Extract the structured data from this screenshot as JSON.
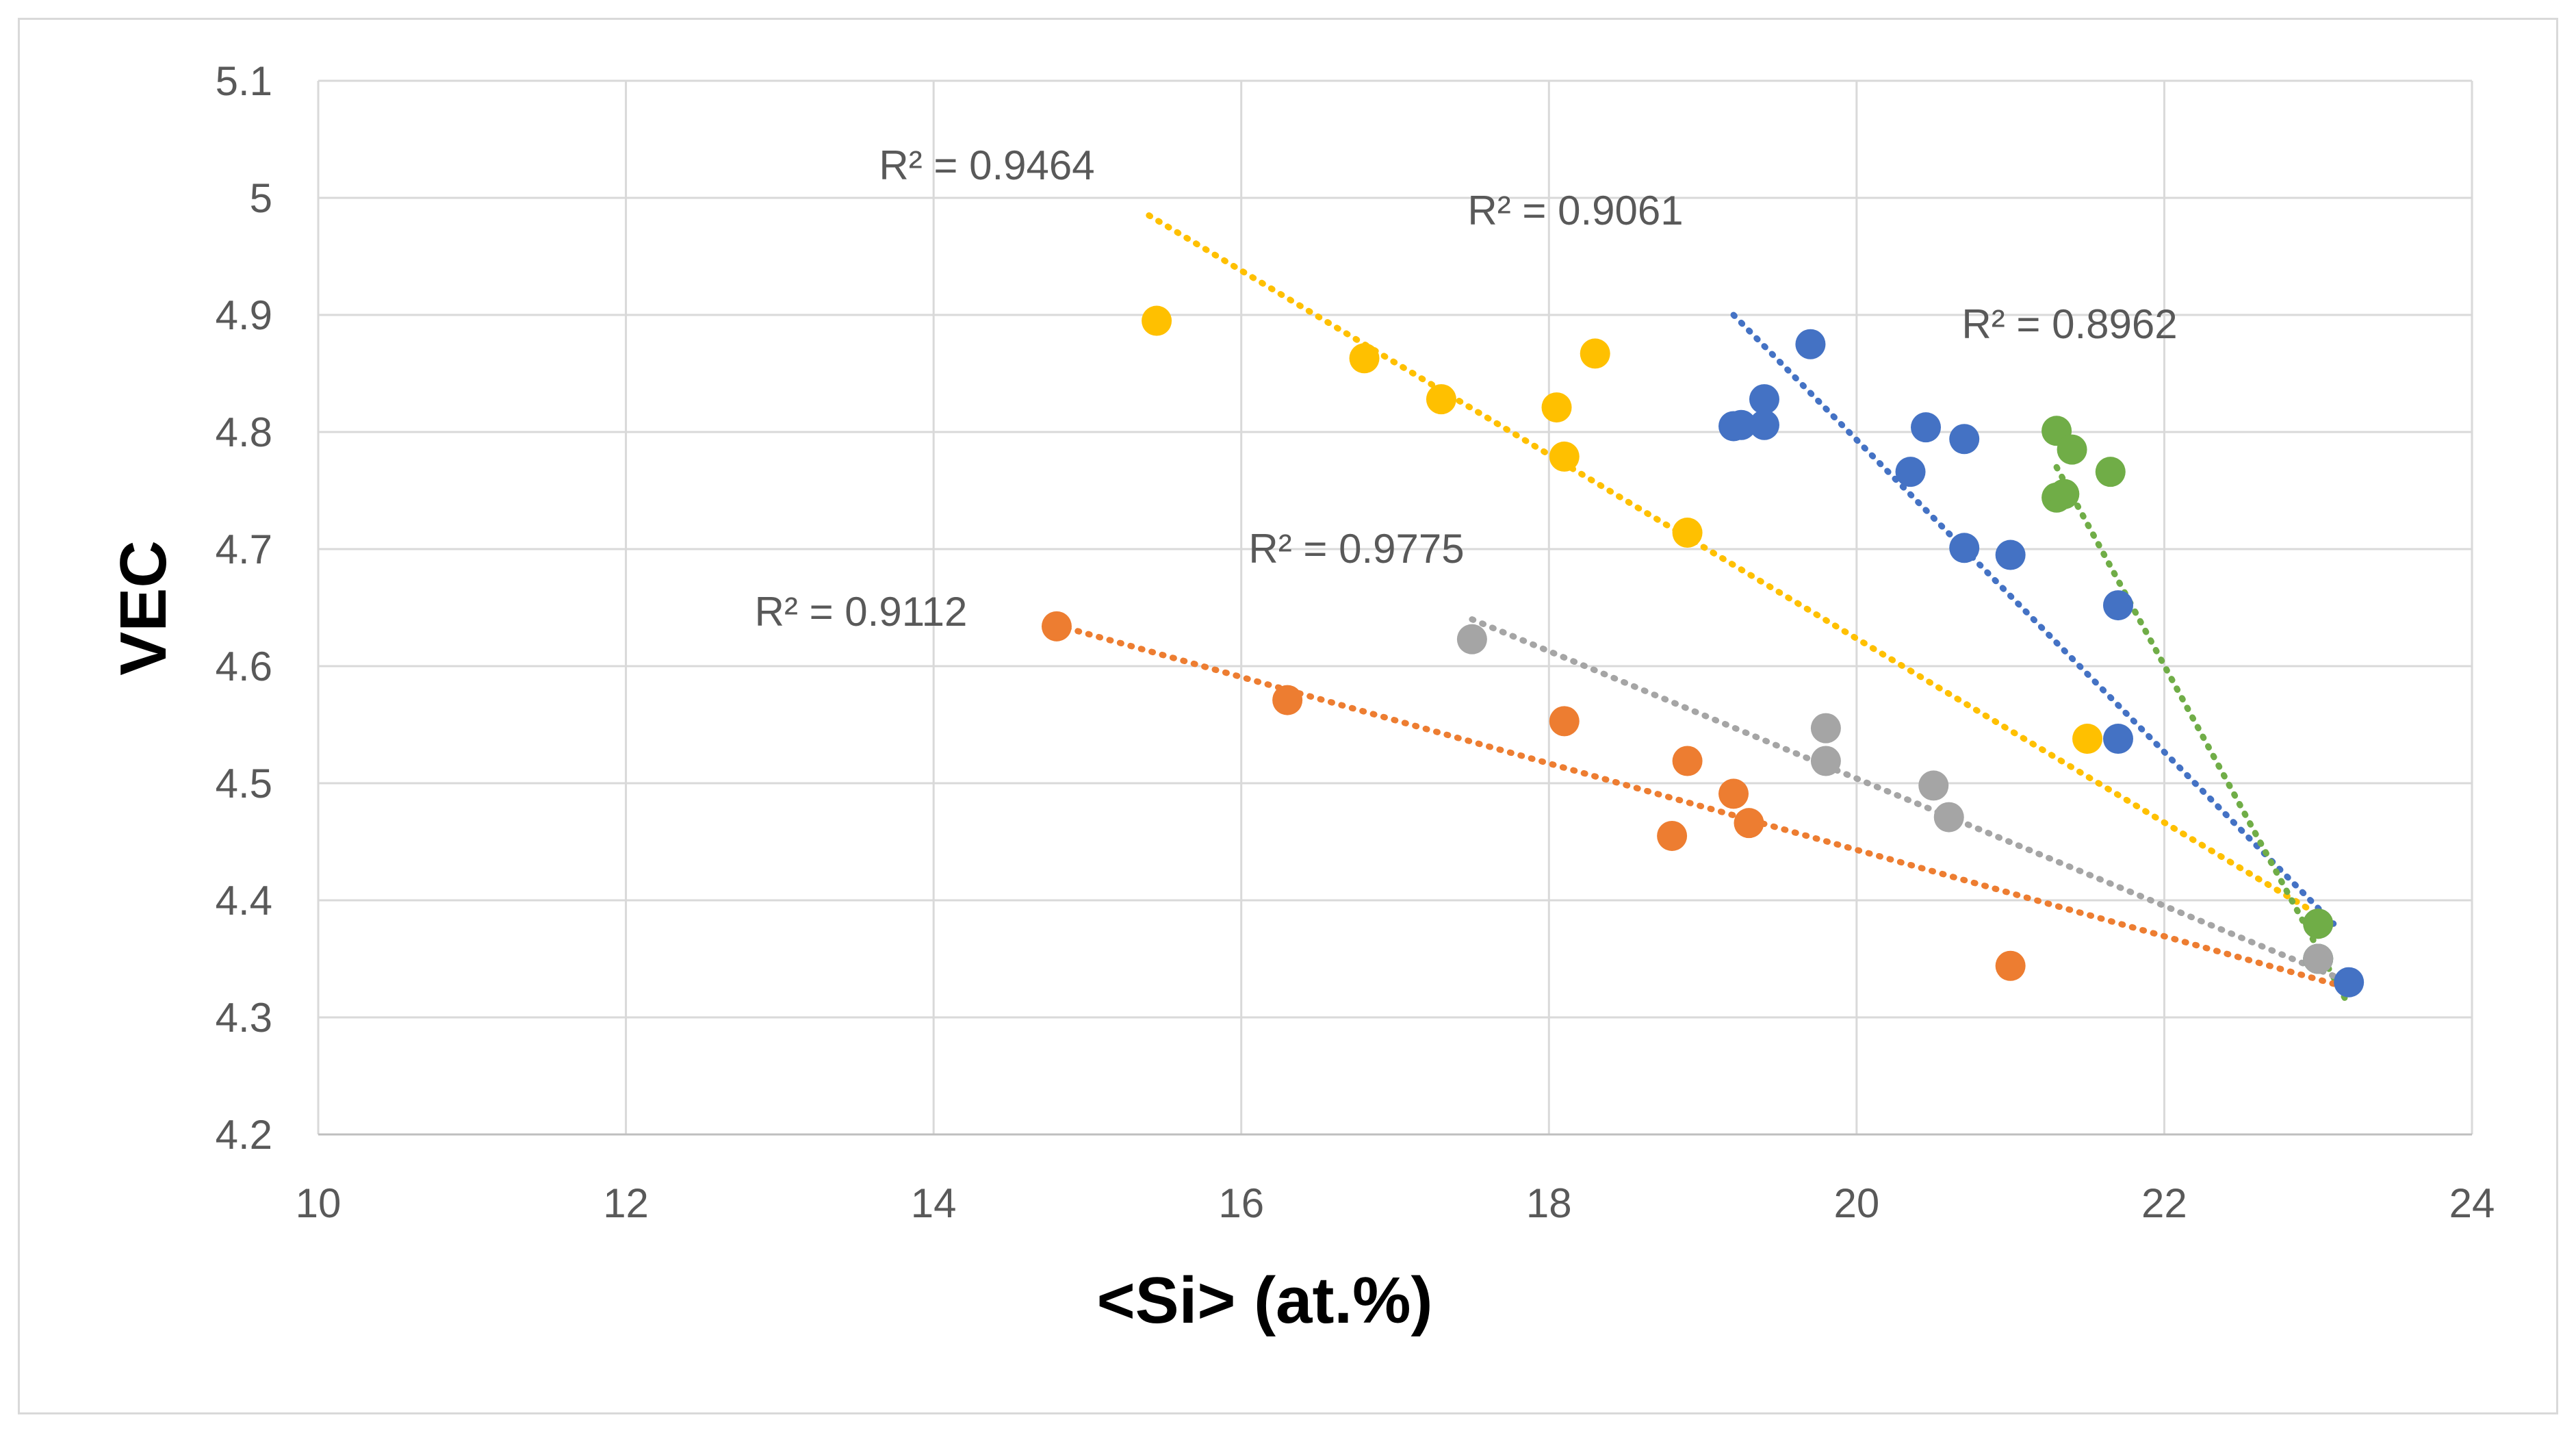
{
  "chart_data": {
    "type": "scatter",
    "title": "",
    "xlabel": "<Si> (at.%)",
    "ylabel": "VEC",
    "xlim": [
      10,
      24
    ],
    "ylim": [
      4.2,
      5.1
    ],
    "xticks": [
      "10",
      "12",
      "14",
      "16",
      "18",
      "20",
      "22",
      "24"
    ],
    "yticks": [
      "4.2",
      "4.3",
      "4.4",
      "4.5",
      "4.6",
      "4.7",
      "4.8",
      "4.9",
      "5",
      "5.1"
    ],
    "grid": true,
    "legend": "none",
    "series": [
      {
        "name": "yellow",
        "color": "#FFC000",
        "points": [
          [
            15.45,
            4.895
          ],
          [
            16.8,
            4.863
          ],
          [
            17.3,
            4.828
          ],
          [
            18.05,
            4.821
          ],
          [
            18.3,
            4.867
          ],
          [
            18.1,
            4.779
          ],
          [
            18.9,
            4.714
          ],
          [
            21.5,
            4.538
          ],
          [
            23.0,
            4.38
          ]
        ],
        "trendline": {
          "x0": 15.4,
          "y0": 4.985,
          "x1": 23.1,
          "y1": 4.38
        },
        "r2_label": "R² = 0.9464"
      },
      {
        "name": "blue",
        "color": "#4472C4",
        "points": [
          [
            19.2,
            4.805
          ],
          [
            19.25,
            4.806
          ],
          [
            19.4,
            4.828
          ],
          [
            19.4,
            4.806
          ],
          [
            19.7,
            4.875
          ],
          [
            20.35,
            4.766
          ],
          [
            20.45,
            4.804
          ],
          [
            20.7,
            4.794
          ],
          [
            20.7,
            4.701
          ],
          [
            21.0,
            4.695
          ],
          [
            21.7,
            4.652
          ],
          [
            21.7,
            4.538
          ],
          [
            23.0,
            4.38
          ],
          [
            23.0,
            4.35
          ],
          [
            23.2,
            4.33
          ]
        ],
        "trendline": {
          "x0": 19.2,
          "y0": 4.9,
          "x1": 23.1,
          "y1": 4.38
        },
        "r2_label": "R² = 0.9061"
      },
      {
        "name": "green",
        "color": "#70AD47",
        "points": [
          [
            21.3,
            4.801
          ],
          [
            21.4,
            4.785
          ],
          [
            21.65,
            4.766
          ],
          [
            21.3,
            4.744
          ],
          [
            21.35,
            4.747
          ],
          [
            23.0,
            4.38
          ],
          [
            23.0,
            4.35
          ]
        ],
        "trendline": {
          "x0": 21.3,
          "y0": 4.77,
          "x1": 23.2,
          "y1": 4.31
        },
        "r2_label": "R² = 0.8962"
      },
      {
        "name": "gray",
        "color": "#A5A5A5",
        "points": [
          [
            17.5,
            4.623
          ],
          [
            19.8,
            4.547
          ],
          [
            19.8,
            4.519
          ],
          [
            20.5,
            4.498
          ],
          [
            20.6,
            4.471
          ],
          [
            23.0,
            4.35
          ]
        ],
        "trendline": {
          "x0": 17.5,
          "y0": 4.64,
          "x1": 23.2,
          "y1": 4.33
        },
        "r2_label": "R² = 0.9775"
      },
      {
        "name": "orange",
        "color": "#ED7D31",
        "points": [
          [
            14.8,
            4.634
          ],
          [
            16.3,
            4.571
          ],
          [
            18.1,
            4.553
          ],
          [
            18.8,
            4.455
          ],
          [
            18.9,
            4.519
          ],
          [
            19.2,
            4.491
          ],
          [
            19.3,
            4.466
          ],
          [
            21.0,
            4.344
          ]
        ],
        "trendline": {
          "x0": 14.8,
          "y0": 4.635,
          "x1": 23.2,
          "y1": 4.325
        },
        "r2_label": "R² = 0.9112"
      }
    ]
  }
}
